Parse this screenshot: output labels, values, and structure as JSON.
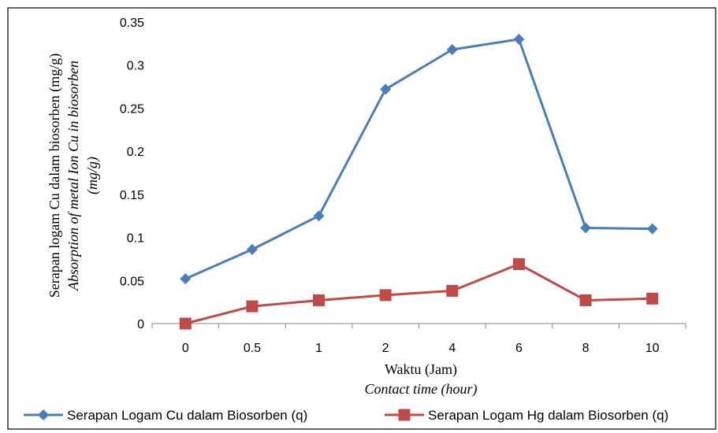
{
  "chart_data": {
    "type": "line",
    "categories": [
      "0",
      "0.5",
      "1",
      "2",
      "4",
      "6",
      "8",
      "10"
    ],
    "series": [
      {
        "name": "Serapan Logam Cu dalam Biosorben (q)",
        "color": "#4a7ebb",
        "marker": "diamond",
        "values": [
          0.052,
          0.086,
          0.125,
          0.272,
          0.318,
          0.33,
          0.111,
          0.11
        ]
      },
      {
        "name": "Serapan Logam Hg dalam Biosorben (q)",
        "color": "#be4b48",
        "marker": "square",
        "values": [
          0.0,
          0.02,
          0.027,
          0.033,
          0.038,
          0.069,
          0.027,
          0.029
        ]
      }
    ],
    "y_ticks": [
      "0",
      "0.05",
      "0.1",
      "0.15",
      "0.2",
      "0.25",
      "0.3",
      "0.35"
    ],
    "ylim": [
      0,
      0.35
    ],
    "xlabel": "Waktu (Jam)",
    "xlabel_en": "Contact time (hour)",
    "ylabel": "Serapan logam Cu dalam biosorben (mg/g)",
    "ylabel_en_1": "Absorption of metal Ion Cu in biosorben",
    "ylabel_en_2": "(mg/g)",
    "grid": false,
    "legend_position": "bottom"
  }
}
